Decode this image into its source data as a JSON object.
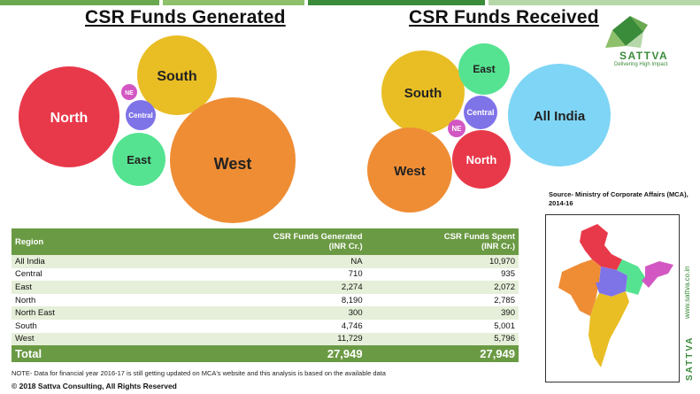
{
  "titles": {
    "generated": "CSR Funds Generated",
    "received": "CSR Funds Received"
  },
  "bubbles": {
    "generated": [
      {
        "label": "North",
        "color": "#e8394a"
      },
      {
        "label": "South",
        "color": "#e9be25"
      },
      {
        "label": "NE",
        "color": "#d257c3"
      },
      {
        "label": "Central",
        "color": "#7f73e8"
      },
      {
        "label": "East",
        "color": "#55e391"
      },
      {
        "label": "West",
        "color": "#ef8d35"
      }
    ],
    "received": [
      {
        "label": "South",
        "color": "#e9be25"
      },
      {
        "label": "East",
        "color": "#55e391"
      },
      {
        "label": "All India",
        "color": "#7fd5f5"
      },
      {
        "label": "Central",
        "color": "#7f73e8"
      },
      {
        "label": "NE",
        "color": "#d257c3"
      },
      {
        "label": "North",
        "color": "#e8394a"
      },
      {
        "label": "West",
        "color": "#ef8d35"
      }
    ]
  },
  "logo": {
    "name": "SATTVA",
    "tagline": "Delivering High Impact",
    "color": "#3a8b3a"
  },
  "table": {
    "headers": {
      "region": "Region",
      "generated": "CSR Funds Generated",
      "generated_unit": "(INR Cr.)",
      "spent": "CSR Funds Spent",
      "spent_unit": "(INR Cr.)"
    },
    "rows": [
      {
        "region": "All India",
        "generated": "NA",
        "spent": "10,970"
      },
      {
        "region": "Central",
        "generated": "710",
        "spent": "935"
      },
      {
        "region": "East",
        "generated": "2,274",
        "spent": "2,072"
      },
      {
        "region": "North",
        "generated": "8,190",
        "spent": "2,785"
      },
      {
        "region": "North East",
        "generated": "300",
        "spent": "390"
      },
      {
        "region": "South",
        "generated": "4,746",
        "spent": "5,001"
      },
      {
        "region": "West",
        "generated": "11,729",
        "spent": "5,796"
      }
    ],
    "total": {
      "region": "Total",
      "generated": "27,949",
      "spent": "27,949"
    }
  },
  "note": "NOTE- Data for financial year 2016-17 is still getting updated on MCA's website and this analysis is based on the available data",
  "copyright": "© 2018 Sattva Consulting, All Rights Reserved",
  "source": "Source- Ministry of Corporate Affairs (MCA), 2014-16",
  "side": {
    "url": "www.sattva.co.in",
    "brand": "SATTVA"
  },
  "topbar_colors": [
    "#6aa84f",
    "#8ec06c",
    "#3a8b3a",
    "#b6d7a8"
  ]
}
